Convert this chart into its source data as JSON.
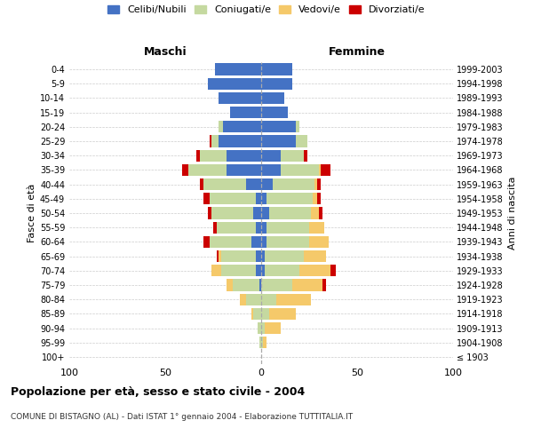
{
  "age_groups": [
    "100+",
    "95-99",
    "90-94",
    "85-89",
    "80-84",
    "75-79",
    "70-74",
    "65-69",
    "60-64",
    "55-59",
    "50-54",
    "45-49",
    "40-44",
    "35-39",
    "30-34",
    "25-29",
    "20-24",
    "15-19",
    "10-14",
    "5-9",
    "0-4"
  ],
  "birth_years": [
    "≤ 1903",
    "1904-1908",
    "1909-1913",
    "1914-1918",
    "1919-1923",
    "1924-1928",
    "1929-1933",
    "1934-1938",
    "1939-1943",
    "1944-1948",
    "1949-1953",
    "1954-1958",
    "1959-1963",
    "1964-1968",
    "1969-1973",
    "1974-1978",
    "1979-1983",
    "1984-1988",
    "1989-1993",
    "1994-1998",
    "1999-2003"
  ],
  "male": {
    "celibi": [
      0,
      0,
      0,
      0,
      0,
      1,
      3,
      3,
      5,
      3,
      4,
      3,
      8,
      18,
      18,
      22,
      20,
      16,
      22,
      28,
      24
    ],
    "coniugati": [
      0,
      1,
      2,
      4,
      8,
      14,
      18,
      18,
      22,
      20,
      22,
      24,
      22,
      20,
      14,
      4,
      2,
      0,
      0,
      0,
      0
    ],
    "vedovi": [
      0,
      0,
      0,
      1,
      3,
      3,
      5,
      1,
      0,
      0,
      0,
      0,
      0,
      0,
      0,
      0,
      0,
      0,
      0,
      0,
      0
    ],
    "divorziati": [
      0,
      0,
      0,
      0,
      0,
      0,
      0,
      1,
      3,
      2,
      2,
      3,
      2,
      3,
      2,
      1,
      0,
      0,
      0,
      0,
      0
    ]
  },
  "female": {
    "nubili": [
      0,
      0,
      0,
      0,
      0,
      0,
      2,
      2,
      3,
      3,
      4,
      3,
      6,
      10,
      10,
      18,
      18,
      14,
      12,
      16,
      16
    ],
    "coniugate": [
      0,
      1,
      2,
      4,
      8,
      16,
      18,
      20,
      22,
      22,
      22,
      24,
      22,
      20,
      12,
      6,
      2,
      0,
      0,
      0,
      0
    ],
    "vedove": [
      0,
      2,
      8,
      14,
      18,
      16,
      16,
      12,
      10,
      8,
      4,
      2,
      1,
      1,
      0,
      0,
      0,
      0,
      0,
      0,
      0
    ],
    "divorziate": [
      0,
      0,
      0,
      0,
      0,
      2,
      3,
      0,
      0,
      0,
      2,
      2,
      2,
      5,
      2,
      0,
      0,
      0,
      0,
      0,
      0
    ]
  },
  "colors": {
    "celibi": "#4472c4",
    "coniugati": "#c5d9a0",
    "vedovi": "#f5c96a",
    "divorziati": "#cc0000"
  },
  "xlim": 100,
  "title": "Popolazione per età, sesso e stato civile - 2004",
  "subtitle": "COMUNE DI BISTAGNO (AL) - Dati ISTAT 1° gennaio 2004 - Elaborazione TUTTITALIA.IT",
  "ylabel_left": "Fasce di età",
  "ylabel_right": "Anni di nascita",
  "xlabel_left": "Maschi",
  "xlabel_right": "Femmine",
  "legend_labels": [
    "Celibi/Nubili",
    "Coniugati/e",
    "Vedovi/e",
    "Divorziati/e"
  ]
}
